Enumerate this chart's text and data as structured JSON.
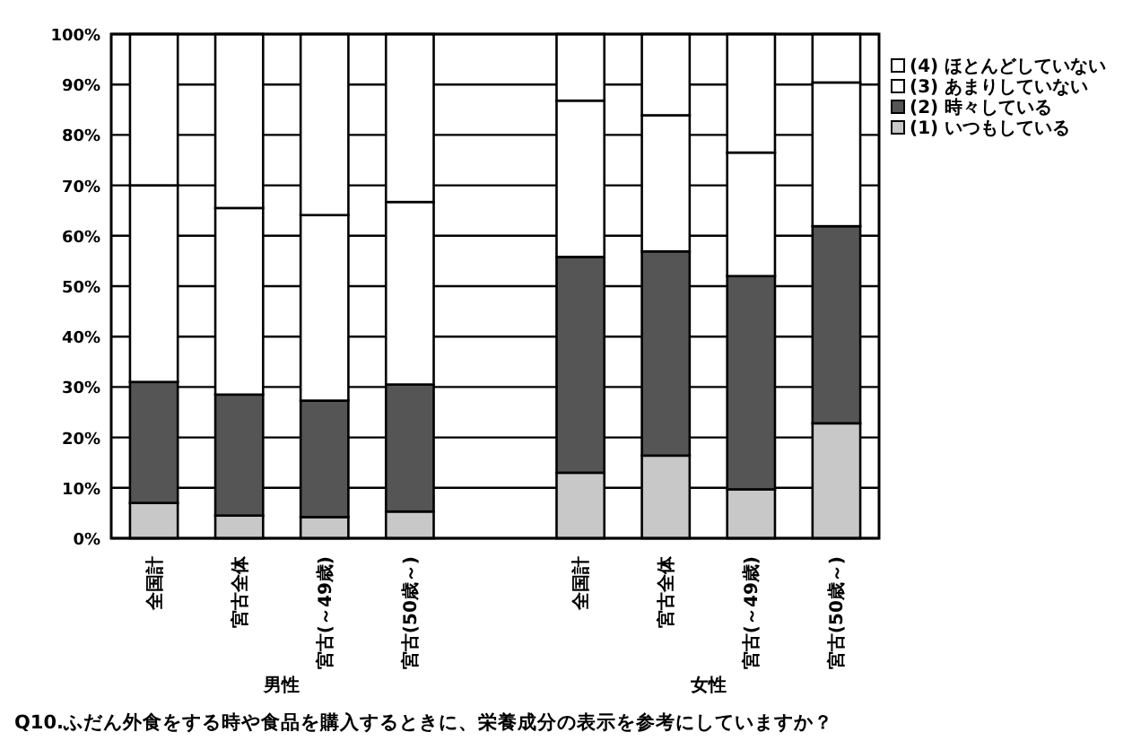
{
  "chart_data": {
    "type": "bar",
    "stacked": true,
    "categories": [
      "全国計",
      "宮古全体",
      "宮古(～49歳)",
      "宮古(50歳～)",
      null,
      "全国計",
      "宮古全体",
      "宮古(～49歳)",
      "宮古(50歳～)"
    ],
    "series": [
      {
        "name": "(1) いつもしている",
        "color": "#c8c8c8",
        "values": [
          7,
          4.5,
          4.2,
          5.3,
          null,
          13,
          16.4,
          9.7,
          22.8
        ]
      },
      {
        "name": "(2) 時々している",
        "color": "#555555",
        "values": [
          24,
          24,
          23.1,
          25.2,
          null,
          42.8,
          40.5,
          42.3,
          39.1
        ]
      },
      {
        "name": "(3) あまりしていない",
        "color": "#ffffff",
        "values": [
          39,
          37,
          36.8,
          36.2,
          null,
          31,
          27,
          24.5,
          28.5
        ]
      },
      {
        "name": "(4) ほとんどしていない",
        "color": "#ffffff",
        "values": [
          30,
          34.5,
          35.9,
          33.3,
          null,
          13.2,
          16.1,
          23.5,
          9.6
        ]
      }
    ],
    "ylim": [
      0,
      100
    ],
    "yticks": [
      {
        "value": 0,
        "label": "0%"
      },
      {
        "value": 10,
        "label": "10%"
      },
      {
        "value": 20,
        "label": "20%"
      },
      {
        "value": 30,
        "label": "30%"
      },
      {
        "value": 40,
        "label": "40%"
      },
      {
        "value": 50,
        "label": "50%"
      },
      {
        "value": 60,
        "label": "60%"
      },
      {
        "value": 70,
        "label": "70%"
      },
      {
        "value": 80,
        "label": "80%"
      },
      {
        "value": 90,
        "label": "90%"
      },
      {
        "value": 100,
        "label": "100%"
      }
    ],
    "grid": "y",
    "legend": "right",
    "annotations": [
      "男性",
      "女性",
      "Q10.ふだん外食をする時や食品を購入するときに、栄養成分の表示を参考にしていますか？"
    ]
  }
}
